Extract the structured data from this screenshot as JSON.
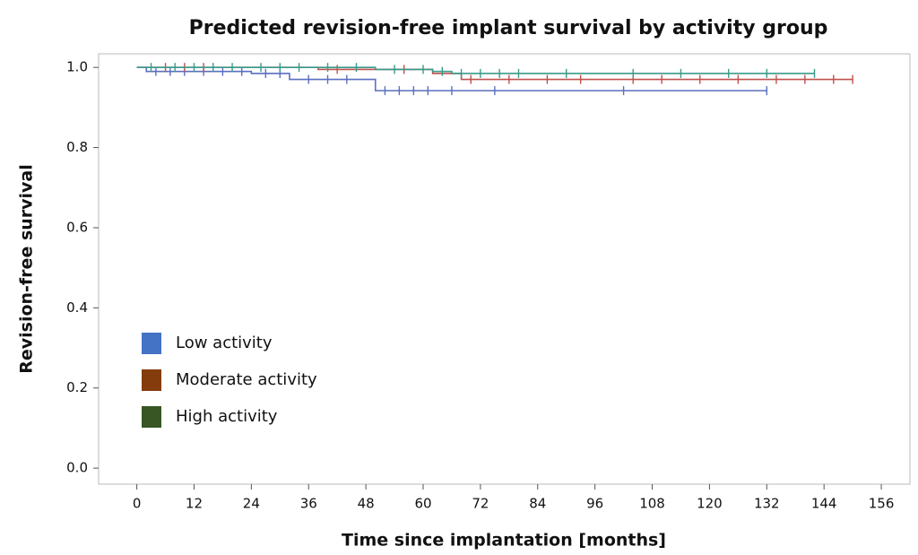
{
  "chart_data": {
    "type": "step",
    "title": "Predicted revision-free implant survival by activity group",
    "xlabel": "Time since implantation [months]",
    "ylabel": "Revision-free survival",
    "xlim": [
      -8,
      162
    ],
    "ylim": [
      -0.04,
      1.034
    ],
    "xticks": [
      0,
      12,
      24,
      36,
      48,
      60,
      72,
      84,
      96,
      108,
      120,
      132,
      144,
      156
    ],
    "yticks": [
      {
        "value": 0,
        "label": "0.0"
      },
      {
        "value": 0.2,
        "label": "0.2"
      },
      {
        "value": 0.4,
        "label": "0.4"
      },
      {
        "value": 0.6,
        "label": "0.6"
      },
      {
        "value": 0.8,
        "label": "0.8"
      },
      {
        "value": 1,
        "label": "1.0"
      }
    ],
    "series": [
      {
        "name": "Low activity",
        "color": "#5a6fc0",
        "legend_color": "#4472c4",
        "x": [
          0,
          2,
          24,
          32,
          50,
          132
        ],
        "values": [
          1.0,
          0.99,
          0.985,
          0.97,
          0.942,
          0.942
        ],
        "censored": [
          4,
          7,
          10,
          14,
          18,
          22,
          27,
          30,
          36,
          40,
          44,
          52,
          55,
          58,
          61,
          66,
          75,
          102,
          132
        ]
      },
      {
        "name": "Moderate activity",
        "color": "#c0504d",
        "legend_color": "#843c0c",
        "x": [
          0,
          38,
          62,
          68,
          150
        ],
        "values": [
          1.0,
          0.995,
          0.985,
          0.97,
          0.97
        ],
        "censored": [
          6,
          10,
          14,
          42,
          56,
          70,
          78,
          86,
          93,
          104,
          110,
          118,
          126,
          134,
          140,
          146,
          150
        ]
      },
      {
        "name": "High activity",
        "color": "#3a9a8a",
        "legend_color": "#375623",
        "x": [
          0,
          50,
          62,
          66,
          142
        ],
        "values": [
          1.0,
          0.995,
          0.99,
          0.985,
          0.985
        ],
        "censored": [
          3,
          8,
          12,
          16,
          20,
          26,
          30,
          34,
          40,
          46,
          54,
          60,
          64,
          68,
          72,
          76,
          80,
          90,
          104,
          114,
          124,
          132,
          142
        ]
      }
    ]
  }
}
